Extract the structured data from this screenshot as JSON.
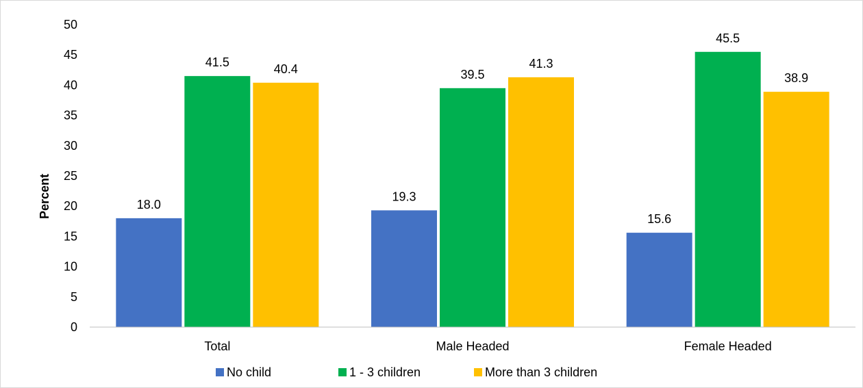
{
  "chart_data": {
    "type": "bar",
    "categories": [
      "Total",
      "Male Headed",
      "Female Headed"
    ],
    "series": [
      {
        "name": "No child",
        "values": [
          18.0,
          19.3,
          15.6
        ],
        "color": "#4472c4"
      },
      {
        "name": "1 - 3 children",
        "values": [
          41.5,
          39.5,
          45.5
        ],
        "color": "#00b050"
      },
      {
        "name": "More than 3 children",
        "values": [
          40.4,
          41.3,
          38.9
        ],
        "color": "#ffc000"
      }
    ],
    "ylabel": "Percent",
    "ylim": [
      0,
      50
    ],
    "yticks": [
      0,
      5,
      10,
      15,
      20,
      25,
      30,
      35,
      40,
      45,
      50
    ],
    "grid": false,
    "legend": "bottom"
  }
}
